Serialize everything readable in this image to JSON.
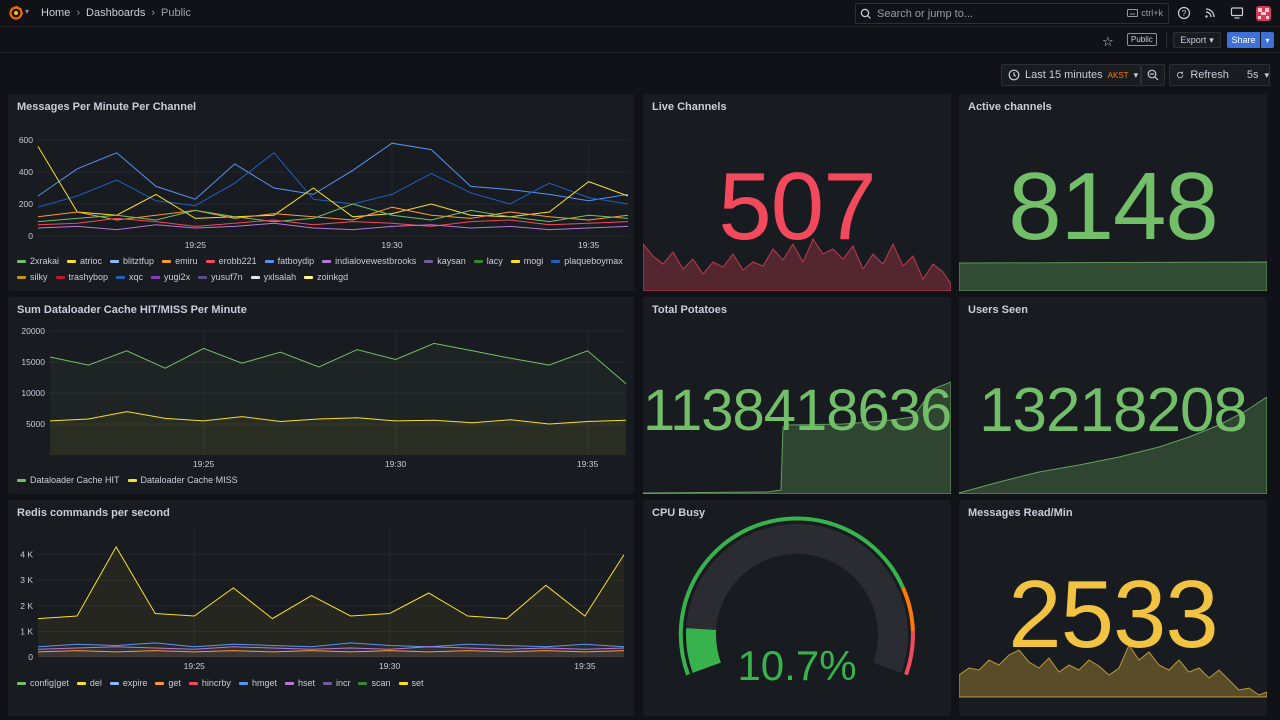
{
  "nav": {
    "breadcrumbs": [
      "Home",
      "Dashboards",
      "Public"
    ],
    "search_placeholder": "Search or jump to...",
    "search_shortcut": "ctrl+k"
  },
  "toolbar": {
    "public_badge": "Public",
    "export_label": "Export",
    "share_label": "Share"
  },
  "timepicker": {
    "range_label": "Last 15 minutes",
    "timezone": "AKST",
    "refresh_label": "Refresh",
    "refresh_interval": "5s"
  },
  "colors": {
    "background": "#111217",
    "panel": "#181b1f",
    "green": "#73bf69",
    "red": "#f2495c",
    "yellow": "#fade2a",
    "gold": "#f2c343",
    "blue": "#5794f2",
    "accent_button": "#3d71d9",
    "timezone": "#ff780a"
  },
  "panels": {
    "messages_per_minute": {
      "title": "Messages Per Minute Per Channel",
      "legend": [
        {
          "name": "2xrakai",
          "color": "#73bf69"
        },
        {
          "name": "atrioc",
          "color": "#fade2a"
        },
        {
          "name": "blitztfup",
          "color": "#8ab8ff"
        },
        {
          "name": "emiru",
          "color": "#ff9830"
        },
        {
          "name": "erobb221",
          "color": "#f2495c"
        },
        {
          "name": "fatboydip",
          "color": "#5794f2"
        },
        {
          "name": "indialovewestbrooks",
          "color": "#b877d9"
        },
        {
          "name": "kaysan",
          "color": "#705da0"
        },
        {
          "name": "lacy",
          "color": "#37872d"
        },
        {
          "name": "mogi",
          "color": "#fade2a"
        },
        {
          "name": "plaqueboymax",
          "color": "#1f60c4"
        },
        {
          "name": "silky",
          "color": "#c4921a"
        },
        {
          "name": "trashybop",
          "color": "#c4162a"
        },
        {
          "name": "xqc",
          "color": "#1f60c4"
        },
        {
          "name": "yugi2x",
          "color": "#8f3bb8"
        },
        {
          "name": "yusuf7n",
          "color": "#5a4a8f"
        },
        {
          "name": "yxlsalah",
          "color": "#e8e8ea"
        },
        {
          "name": "zoinkgd",
          "color": "#fff899"
        }
      ]
    },
    "dataloader": {
      "title": "Sum Dataloader Cache HIT/MISS Per Minute",
      "legend": [
        {
          "name": "Dataloader Cache HIT",
          "color": "#73bf69"
        },
        {
          "name": "Dataloader Cache MISS",
          "color": "#fade2a"
        }
      ]
    },
    "redis": {
      "title": "Redis commands per second",
      "legend": [
        {
          "name": "config|get",
          "color": "#73bf69"
        },
        {
          "name": "del",
          "color": "#fade2a"
        },
        {
          "name": "expire",
          "color": "#8ab8ff"
        },
        {
          "name": "get",
          "color": "#ff9830"
        },
        {
          "name": "hincrby",
          "color": "#f2495c"
        },
        {
          "name": "hmget",
          "color": "#5794f2"
        },
        {
          "name": "hset",
          "color": "#b877d9"
        },
        {
          "name": "incr",
          "color": "#705da0"
        },
        {
          "name": "scan",
          "color": "#37872d"
        },
        {
          "name": "set",
          "color": "#fade2a"
        }
      ]
    },
    "live_channels": {
      "title": "Live Channels",
      "value": "507",
      "color": "#f2495c"
    },
    "active_channels": {
      "title": "Active channels",
      "value": "8148",
      "color": "#73bf69"
    },
    "total_potatoes": {
      "title": "Total Potatoes",
      "value": "1138418636",
      "color": "#73bf69"
    },
    "users_seen": {
      "title": "Users Seen",
      "value": "13218208",
      "color": "#73bf69"
    },
    "cpu_busy": {
      "title": "CPU Busy",
      "value": "10.7%",
      "percent": 10.7,
      "color": "#37b24d"
    },
    "messages_read": {
      "title": "Messages Read/Min",
      "value": "2533",
      "color": "#f2c343"
    }
  },
  "chart_data": [
    {
      "type": "line",
      "title": "Messages Per Minute Per Channel",
      "x_ticks": [
        "19:25",
        "19:30",
        "19:35"
      ],
      "y_ticks": [
        "0",
        "200",
        "400",
        "600"
      ],
      "ylim": [
        0,
        600
      ],
      "x": [
        "19:21",
        "19:22",
        "19:23",
        "19:24",
        "19:25",
        "19:26",
        "19:27",
        "19:28",
        "19:29",
        "19:30",
        "19:31",
        "19:32",
        "19:33",
        "19:34",
        "19:35",
        "19:36"
      ],
      "series": [
        {
          "name": "fatboydip",
          "values": [
            250,
            420,
            520,
            310,
            230,
            450,
            300,
            260,
            410,
            580,
            540,
            310,
            290,
            260,
            220,
            260
          ]
        },
        {
          "name": "xqc",
          "values": [
            180,
            250,
            350,
            220,
            190,
            330,
            520,
            230,
            200,
            260,
            390,
            270,
            200,
            330,
            240,
            200
          ]
        },
        {
          "name": "atrioc",
          "values": [
            560,
            150,
            130,
            260,
            110,
            120,
            130,
            300,
            120,
            140,
            200,
            130,
            120,
            150,
            340,
            250
          ]
        },
        {
          "name": "emiru",
          "values": [
            120,
            150,
            100,
            130,
            160,
            110,
            140,
            120,
            100,
            180,
            130,
            110,
            150,
            120,
            100,
            130
          ]
        },
        {
          "name": "2xrakai",
          "values": [
            90,
            110,
            130,
            100,
            160,
            120,
            90,
            110,
            200,
            130,
            100,
            160,
            120,
            90,
            130,
            110
          ]
        },
        {
          "name": "erobb221",
          "values": [
            70,
            80,
            110,
            90,
            60,
            80,
            100,
            70,
            90,
            80,
            60,
            90,
            100,
            70,
            80,
            90
          ]
        },
        {
          "name": "indialovewestbrooks",
          "values": [
            50,
            60,
            40,
            70,
            50,
            60,
            80,
            50,
            40,
            60,
            70,
            50,
            60,
            40,
            50,
            60
          ]
        }
      ]
    },
    {
      "type": "area",
      "title": "Sum Dataloader Cache HIT/MISS Per Minute",
      "x_ticks": [
        "19:25",
        "19:30",
        "19:35"
      ],
      "y_ticks": [
        "5000",
        "10000",
        "15000",
        "20000"
      ],
      "ylim": [
        0,
        20000
      ],
      "x": [
        "19:21",
        "19:22",
        "19:23",
        "19:24",
        "19:25",
        "19:26",
        "19:27",
        "19:28",
        "19:29",
        "19:30",
        "19:31",
        "19:32",
        "19:33",
        "19:34",
        "19:35",
        "19:36"
      ],
      "series": [
        {
          "name": "Dataloader Cache HIT",
          "values": [
            15800,
            14500,
            16800,
            14000,
            17200,
            14800,
            16600,
            14200,
            17000,
            15400,
            18000,
            16800,
            15600,
            14500,
            16800,
            11500
          ]
        },
        {
          "name": "Dataloader Cache MISS",
          "values": [
            5500,
            5800,
            7000,
            5900,
            5500,
            6200,
            5400,
            5800,
            6000,
            5500,
            5600,
            5200,
            5700,
            5000,
            5400,
            5600
          ]
        }
      ]
    },
    {
      "type": "area",
      "title": "Redis commands per second",
      "x_ticks": [
        "19:25",
        "19:30",
        "19:35"
      ],
      "y_ticks": [
        "0",
        "1 K",
        "2 K",
        "3 K",
        "4 K"
      ],
      "ylim": [
        0,
        5000
      ],
      "x": [
        "19:21",
        "19:22",
        "19:23",
        "19:24",
        "19:25",
        "19:26",
        "19:27",
        "19:28",
        "19:29",
        "19:30",
        "19:31",
        "19:32",
        "19:33",
        "19:34",
        "19:35",
        "19:36"
      ],
      "series": [
        {
          "name": "set",
          "values": [
            1500,
            1600,
            4300,
            1700,
            1600,
            2700,
            1500,
            2400,
            1600,
            1700,
            2500,
            1600,
            1500,
            2800,
            1600,
            4000
          ]
        },
        {
          "name": "hmget",
          "values": [
            400,
            500,
            450,
            550,
            400,
            500,
            450,
            400,
            550,
            450,
            400,
            500,
            450,
            400,
            500,
            400
          ]
        },
        {
          "name": "hset",
          "values": [
            300,
            350,
            400,
            350,
            300,
            400,
            350,
            300,
            350,
            300,
            400,
            350,
            300,
            350,
            300,
            350
          ]
        },
        {
          "name": "get",
          "values": [
            200,
            250,
            200,
            250,
            200,
            250,
            200,
            250,
            200,
            250,
            200,
            250,
            200,
            250,
            200,
            250
          ]
        }
      ]
    },
    {
      "type": "gauge",
      "title": "CPU Busy",
      "value": 10.7,
      "unit": "%",
      "min": 0,
      "max": 100
    }
  ]
}
